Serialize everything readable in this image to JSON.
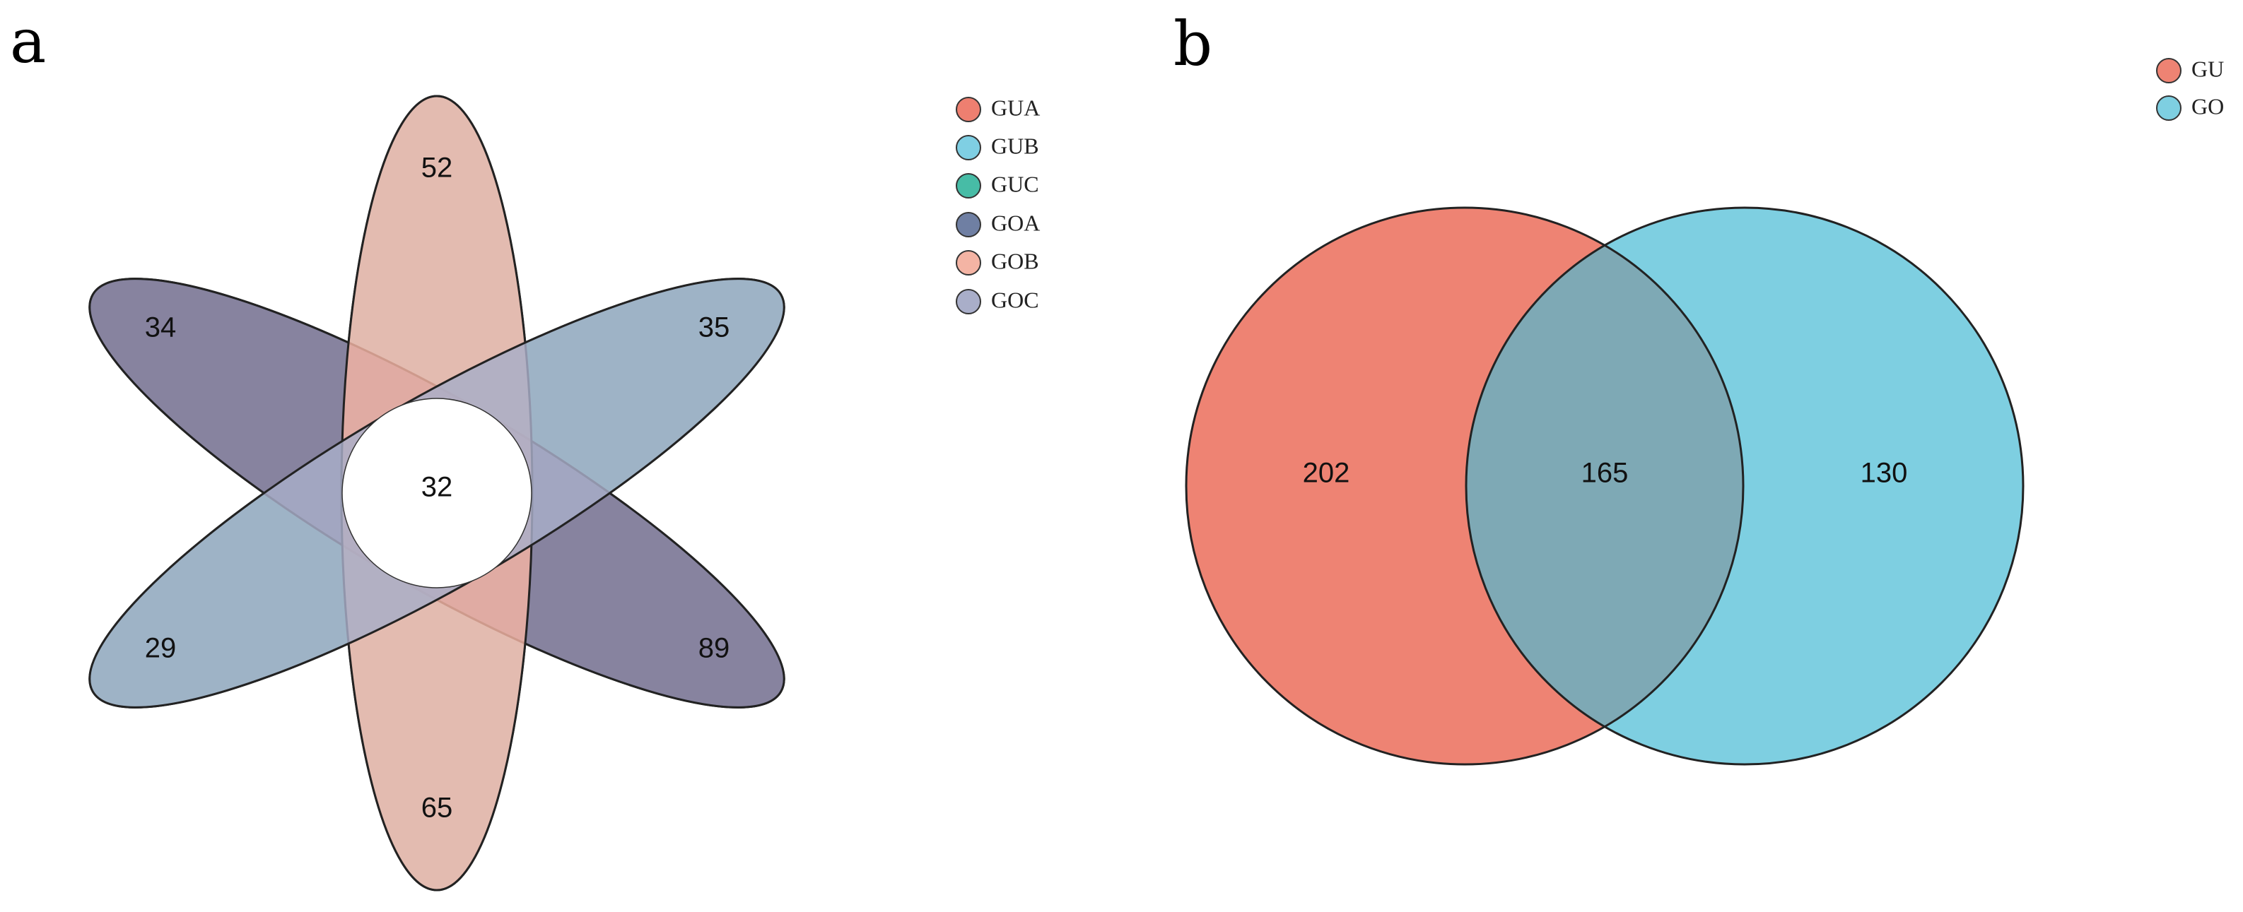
{
  "panels": {
    "a": {
      "label": "a"
    },
    "b": {
      "label": "b"
    }
  },
  "flower": {
    "sets": [
      {
        "name": "GUA",
        "color": "#EE7F70",
        "unique": "89"
      },
      {
        "name": "GUB",
        "color": "#7FCFE3",
        "unique": "65"
      },
      {
        "name": "GUC",
        "color": "#47BCA6",
        "unique": "29"
      },
      {
        "name": "GOA",
        "color": "#6F7FA3",
        "unique": "34"
      },
      {
        "name": "GOB",
        "color": "#F4B4A4",
        "unique": "52"
      },
      {
        "name": "GOC",
        "color": "#A9AEC9",
        "unique": "35"
      }
    ],
    "core": "32"
  },
  "venn": {
    "sets": [
      {
        "name": "GU",
        "color": "#EE8373",
        "unique": "202"
      },
      {
        "name": "GO",
        "color": "#7ECFE1",
        "unique": "130"
      }
    ],
    "overlap": "165",
    "overlap_color": "#7EA9B5"
  }
}
